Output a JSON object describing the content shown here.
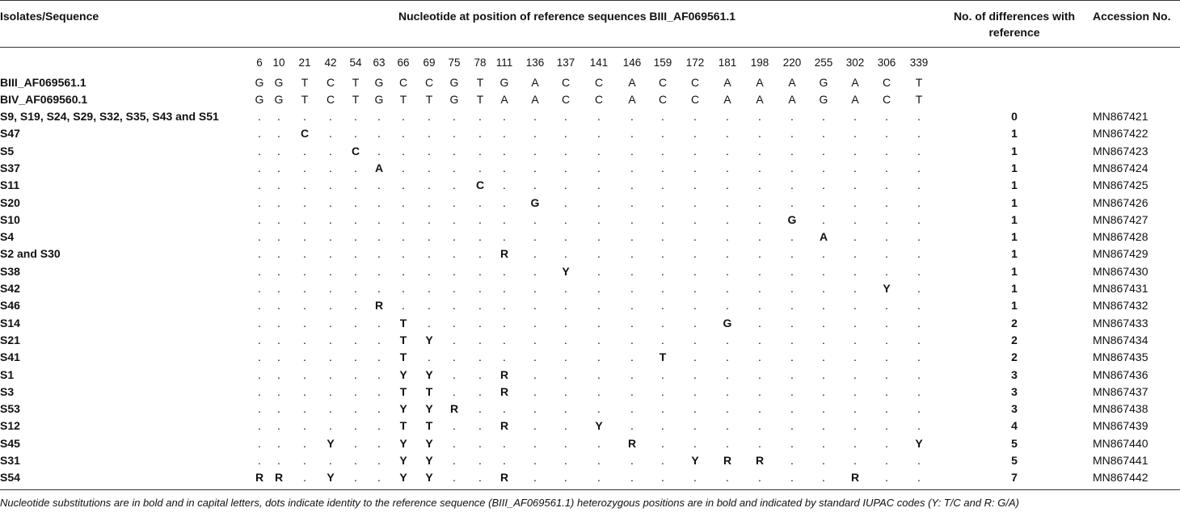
{
  "header": {
    "isolates_label": "Isolates/Sequence",
    "nucleotide_label": "Nucleotide at position of reference sequences BIII_AF069561.1",
    "diff_label_line1": "No. of differences with",
    "diff_label_line2": "reference",
    "accession_label": "Accession No."
  },
  "positions": [
    "6",
    "10",
    "21",
    "42",
    "54",
    "63",
    "66",
    "69",
    "75",
    "78",
    "111",
    "136",
    "137",
    "141",
    "146",
    "159",
    "172",
    "181",
    "198",
    "220",
    "255",
    "302",
    "306",
    "339"
  ],
  "references": [
    {
      "name": "BIII_AF069561.1",
      "seq": [
        "G",
        "G",
        "T",
        "C",
        "T",
        "G",
        "C",
        "C",
        "G",
        "T",
        "G",
        "A",
        "C",
        "C",
        "A",
        "C",
        "C",
        "A",
        "A",
        "A",
        "G",
        "A",
        "C",
        "T"
      ]
    },
    {
      "name": "BIV_AF069560.1",
      "seq": [
        "G",
        "G",
        "T",
        "C",
        "T",
        "G",
        "T",
        "T",
        "G",
        "T",
        "A",
        "A",
        "C",
        "C",
        "A",
        "C",
        "C",
        "A",
        "A",
        "A",
        "G",
        "A",
        "C",
        "T"
      ]
    }
  ],
  "isolates": [
    {
      "name": "S9, S19, S24, S29, S32, S35, S43 and S51",
      "subs": {},
      "diff": "0",
      "acc": "MN867421"
    },
    {
      "name": "S47",
      "subs": {
        "21": "C"
      },
      "diff": "1",
      "acc": "MN867422"
    },
    {
      "name": "S5",
      "subs": {
        "54": "C"
      },
      "diff": "1",
      "acc": "MN867423"
    },
    {
      "name": "S37",
      "subs": {
        "63": "A"
      },
      "diff": "1",
      "acc": "MN867424"
    },
    {
      "name": "S11",
      "subs": {
        "78": "C"
      },
      "diff": "1",
      "acc": "MN867425"
    },
    {
      "name": "S20",
      "subs": {
        "136": "G"
      },
      "diff": "1",
      "acc": "MN867426"
    },
    {
      "name": "S10",
      "subs": {
        "220": "G"
      },
      "diff": "1",
      "acc": "MN867427"
    },
    {
      "name": "S4",
      "subs": {
        "255": "A"
      },
      "diff": "1",
      "acc": "MN867428"
    },
    {
      "name": "S2 and S30",
      "subs": {
        "111": "R"
      },
      "diff": "1",
      "acc": "MN867429"
    },
    {
      "name": "S38",
      "subs": {
        "137": "Y"
      },
      "diff": "1",
      "acc": "MN867430"
    },
    {
      "name": "S42",
      "subs": {
        "306": "Y"
      },
      "diff": "1",
      "acc": "MN867431"
    },
    {
      "name": "S46",
      "subs": {
        "63": "R"
      },
      "diff": "1",
      "acc": "MN867432"
    },
    {
      "name": "S14",
      "subs": {
        "66": "T",
        "181": "G"
      },
      "diff": "2",
      "acc": "MN867433"
    },
    {
      "name": "S21",
      "subs": {
        "66": "T",
        "69": "Y"
      },
      "diff": "2",
      "acc": "MN867434"
    },
    {
      "name": "S41",
      "subs": {
        "66": "T",
        "159": "T"
      },
      "diff": "2",
      "acc": "MN867435"
    },
    {
      "name": "S1",
      "subs": {
        "66": "Y",
        "69": "Y",
        "111": "R"
      },
      "diff": "3",
      "acc": "MN867436"
    },
    {
      "name": "S3",
      "subs": {
        "66": "T",
        "69": "T",
        "111": "R"
      },
      "diff": "3",
      "acc": "MN867437"
    },
    {
      "name": "S53",
      "subs": {
        "66": "Y",
        "69": "Y",
        "75": "R"
      },
      "diff": "3",
      "acc": "MN867438"
    },
    {
      "name": "S12",
      "subs": {
        "66": "T",
        "69": "T",
        "111": "R",
        "141": "Y"
      },
      "diff": "4",
      "acc": "MN867439"
    },
    {
      "name": "S45",
      "subs": {
        "42": "Y",
        "66": "Y",
        "69": "Y",
        "146": "R",
        "339": "Y"
      },
      "diff": "5",
      "acc": "MN867440"
    },
    {
      "name": "S31",
      "subs": {
        "66": "Y",
        "69": "Y",
        "172": "Y",
        "181": "R",
        "198": "R"
      },
      "diff": "5",
      "acc": "MN867441"
    },
    {
      "name": "S54",
      "subs": {
        "6": "R",
        "10": "R",
        "42": "Y",
        "66": "Y",
        "69": "Y",
        "111": "R",
        "302": "R"
      },
      "diff": "7",
      "acc": "MN867442"
    }
  ],
  "dot_char": ".",
  "footnote": "Nucleotide substitutions are in bold and in capital letters, dots indicate identity to the reference sequence (BIII_AF069561.1) heterozygous positions are in bold and indicated by standard IUPAC codes (Y: T/C and R: G/A)"
}
